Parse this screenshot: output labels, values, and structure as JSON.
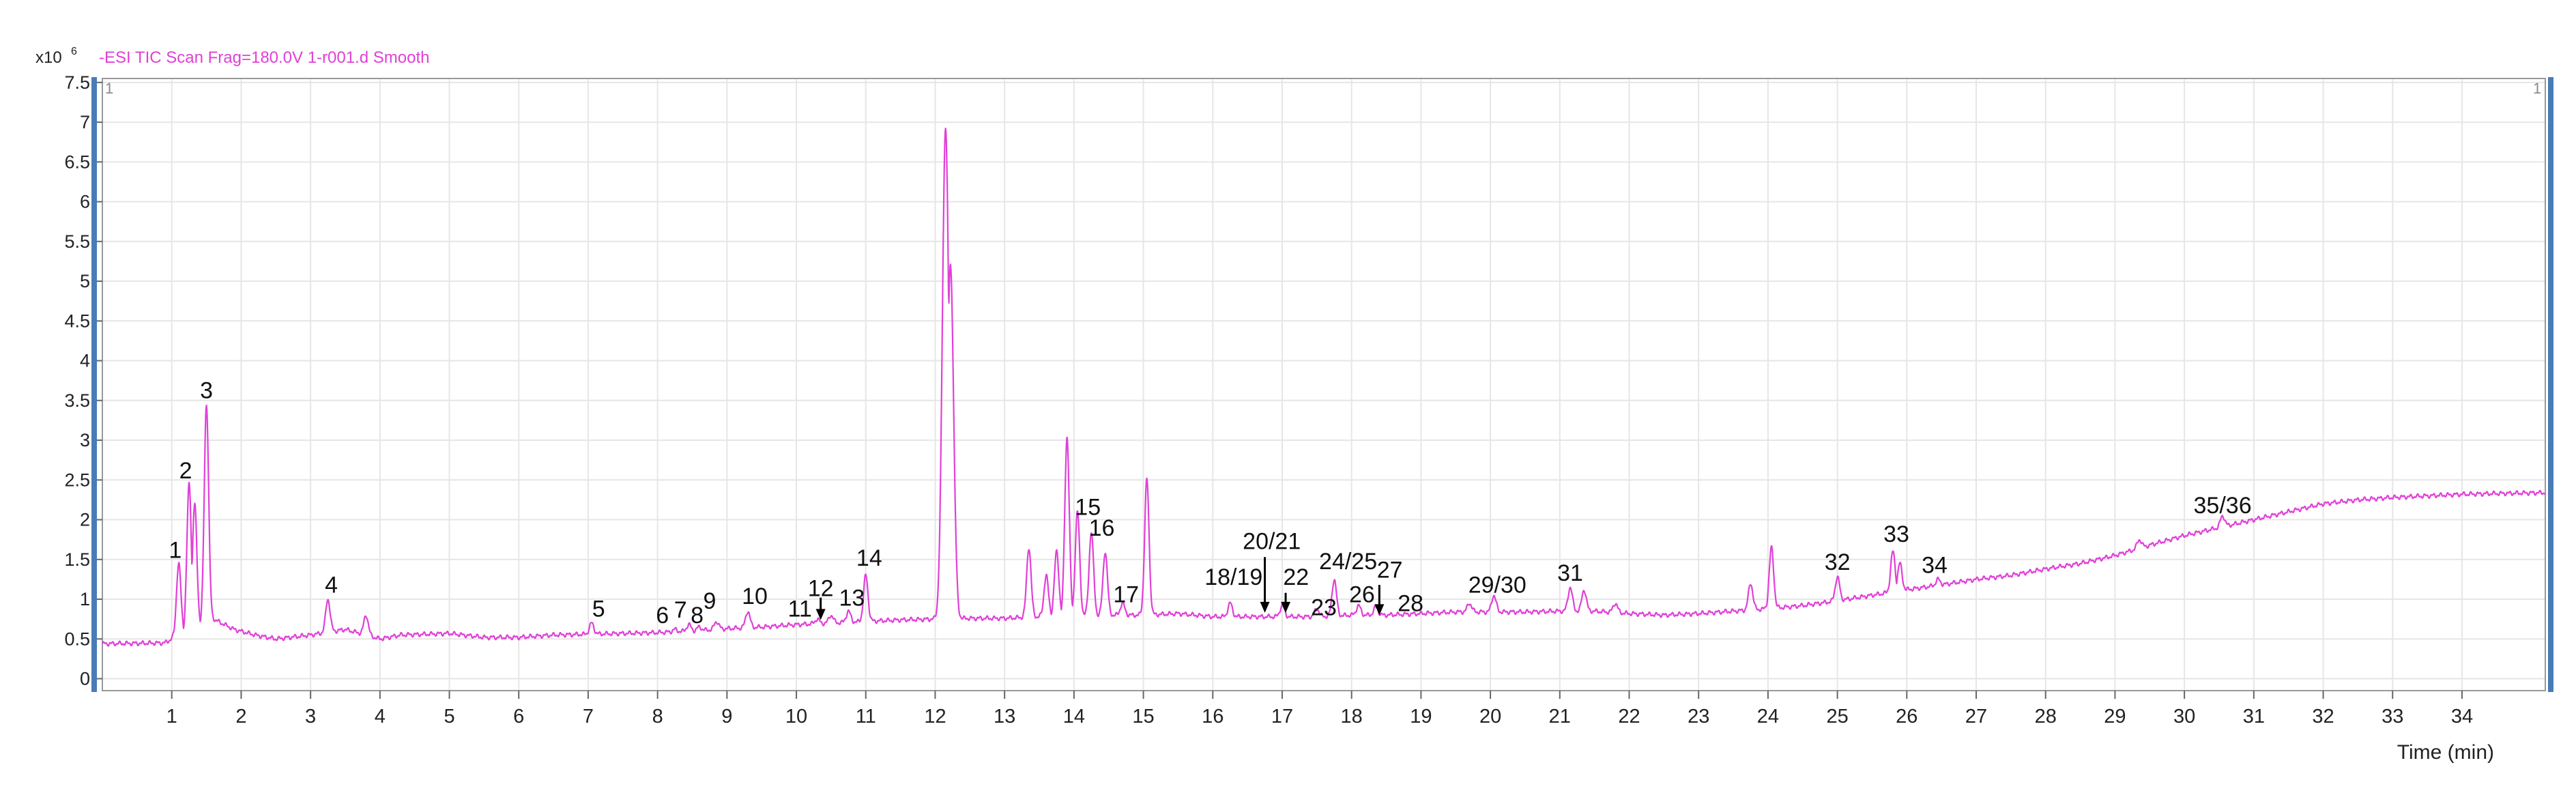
{
  "chart_data": {
    "type": "line",
    "title": "-ESI TIC Scan Frag=180.0V 1-r001.d  Smooth",
    "y_multiplier_label": "x10",
    "y_multiplier_exponent": "6",
    "xlabel": "Time (min)",
    "ylabel": "",
    "xlim": [
      0,
      35.2
    ],
    "ylim": [
      -0.15,
      7.55
    ],
    "x_ticks": [
      "1",
      "2",
      "3",
      "4",
      "5",
      "6",
      "7",
      "8",
      "9",
      "10",
      "11",
      "12",
      "13",
      "14",
      "15",
      "16",
      "17",
      "18",
      "19",
      "20",
      "21",
      "22",
      "23",
      "24",
      "25",
      "26",
      "27",
      "28",
      "29",
      "30",
      "31",
      "32",
      "33",
      "34"
    ],
    "y_ticks": [
      "0",
      "0.5",
      "1",
      "1.5",
      "2",
      "2.5",
      "3",
      "3.5",
      "4",
      "4.5",
      "5",
      "5.5",
      "6",
      "6.5",
      "7",
      "7.5"
    ],
    "cursor_labels": [
      "1",
      "1"
    ],
    "grid": true,
    "line_color": "#e040d8",
    "series": [
      {
        "baseline": [
          [
            0,
            0.44
          ],
          [
            0.9,
            0.45
          ],
          [
            1.0,
            0.5
          ],
          [
            1.6,
            0.75
          ],
          [
            1.9,
            0.62
          ],
          [
            2.2,
            0.55
          ],
          [
            2.5,
            0.5
          ],
          [
            3.0,
            0.55
          ],
          [
            3.5,
            0.62
          ],
          [
            3.8,
            0.55
          ],
          [
            4.0,
            0.5
          ],
          [
            4.3,
            0.55
          ],
          [
            5.0,
            0.57
          ],
          [
            5.5,
            0.52
          ],
          [
            6.0,
            0.52
          ],
          [
            6.5,
            0.55
          ],
          [
            7.0,
            0.56
          ],
          [
            7.5,
            0.57
          ],
          [
            8.0,
            0.58
          ],
          [
            8.5,
            0.6
          ],
          [
            9.0,
            0.63
          ],
          [
            9.5,
            0.65
          ],
          [
            10.0,
            0.68
          ],
          [
            10.5,
            0.7
          ],
          [
            11.0,
            0.72
          ],
          [
            11.5,
            0.74
          ],
          [
            12.0,
            0.75
          ],
          [
            12.5,
            0.76
          ],
          [
            13.0,
            0.76
          ],
          [
            13.5,
            0.78
          ],
          [
            14.0,
            0.8
          ],
          [
            14.5,
            0.8
          ],
          [
            15.0,
            0.8
          ],
          [
            15.5,
            0.82
          ],
          [
            16.0,
            0.78
          ],
          [
            16.5,
            0.78
          ],
          [
            17.0,
            0.78
          ],
          [
            17.5,
            0.78
          ],
          [
            18.0,
            0.8
          ],
          [
            18.5,
            0.8
          ],
          [
            19.0,
            0.82
          ],
          [
            19.5,
            0.84
          ],
          [
            20.0,
            0.84
          ],
          [
            20.5,
            0.84
          ],
          [
            21.0,
            0.85
          ],
          [
            21.5,
            0.85
          ],
          [
            22.0,
            0.82
          ],
          [
            22.5,
            0.8
          ],
          [
            23.0,
            0.82
          ],
          [
            23.5,
            0.85
          ],
          [
            24.0,
            0.88
          ],
          [
            24.5,
            0.92
          ],
          [
            25.0,
            0.98
          ],
          [
            25.5,
            1.05
          ],
          [
            26.0,
            1.12
          ],
          [
            26.5,
            1.18
          ],
          [
            27.0,
            1.25
          ],
          [
            27.5,
            1.3
          ],
          [
            28.0,
            1.38
          ],
          [
            28.5,
            1.45
          ],
          [
            29.0,
            1.55
          ],
          [
            29.5,
            1.68
          ],
          [
            30.0,
            1.8
          ],
          [
            30.5,
            1.9
          ],
          [
            31.0,
            2.0
          ],
          [
            31.5,
            2.1
          ],
          [
            32.0,
            2.2
          ],
          [
            32.5,
            2.25
          ],
          [
            33.0,
            2.28
          ],
          [
            33.5,
            2.3
          ],
          [
            34.0,
            2.32
          ],
          [
            34.5,
            2.33
          ],
          [
            35.2,
            2.34
          ]
        ],
        "peaks": [
          [
            1.1,
            1.45
          ],
          [
            1.25,
            2.45
          ],
          [
            1.33,
            2.2
          ],
          [
            1.5,
            3.45
          ],
          [
            3.25,
            1.0
          ],
          [
            3.8,
            0.8
          ],
          [
            7.05,
            0.7
          ],
          [
            8.25,
            0.62
          ],
          [
            8.45,
            0.68
          ],
          [
            8.6,
            0.65
          ],
          [
            8.85,
            0.72
          ],
          [
            9.3,
            0.85
          ],
          [
            10.3,
            0.75
          ],
          [
            10.5,
            0.8
          ],
          [
            10.75,
            0.85
          ],
          [
            11.0,
            1.3
          ],
          [
            12.15,
            6.95
          ],
          [
            12.22,
            5.2
          ],
          [
            13.35,
            1.65
          ],
          [
            13.6,
            1.3
          ],
          [
            13.75,
            1.6
          ],
          [
            13.9,
            3.05
          ],
          [
            14.05,
            2.1
          ],
          [
            14.25,
            1.85
          ],
          [
            14.45,
            1.6
          ],
          [
            14.7,
            0.95
          ],
          [
            15.05,
            2.5
          ],
          [
            16.25,
            0.95
          ],
          [
            17.0,
            0.92
          ],
          [
            17.5,
            0.88
          ],
          [
            17.75,
            1.25
          ],
          [
            18.1,
            0.92
          ],
          [
            18.35,
            0.9
          ],
          [
            19.7,
            0.95
          ],
          [
            20.05,
            1.05
          ],
          [
            21.15,
            1.15
          ],
          [
            21.35,
            1.12
          ],
          [
            21.8,
            0.95
          ],
          [
            23.75,
            1.2
          ],
          [
            24.05,
            1.65
          ],
          [
            25.0,
            1.28
          ],
          [
            25.8,
            1.6
          ],
          [
            25.9,
            1.45
          ],
          [
            26.45,
            1.25
          ],
          [
            29.35,
            1.75
          ],
          [
            30.55,
            2.05
          ]
        ]
      }
    ],
    "annotations": [
      {
        "label": "1",
        "x": 1.05,
        "y": 1.52
      },
      {
        "label": "2",
        "x": 1.2,
        "y": 2.52
      },
      {
        "label": "3",
        "x": 1.5,
        "y": 3.53
      },
      {
        "label": "4",
        "x": 3.3,
        "y": 1.08
      },
      {
        "label": "5",
        "x": 7.15,
        "y": 0.78
      },
      {
        "label": "6",
        "x": 8.07,
        "y": 0.7
      },
      {
        "label": "7",
        "x": 8.33,
        "y": 0.77
      },
      {
        "label": "8",
        "x": 8.57,
        "y": 0.7
      },
      {
        "label": "9",
        "x": 8.75,
        "y": 0.88
      },
      {
        "label": "10",
        "x": 9.4,
        "y": 0.94
      },
      {
        "label": "11",
        "x": 10.05,
        "y": 0.78
      },
      {
        "label": "12",
        "x": 10.35,
        "y": 1.04
      },
      {
        "label": "13",
        "x": 10.8,
        "y": 0.92
      },
      {
        "label": "14",
        "x": 11.05,
        "y": 1.42
      },
      {
        "label": "15",
        "x": 14.2,
        "y": 2.06
      },
      {
        "label": "16",
        "x": 14.4,
        "y": 1.8
      },
      {
        "label": "17",
        "x": 14.75,
        "y": 0.96
      },
      {
        "label": "18/19",
        "x": 16.3,
        "y": 1.18
      },
      {
        "label": "20/21",
        "x": 16.85,
        "y": 1.63
      },
      {
        "label": "22",
        "x": 17.2,
        "y": 1.18
      },
      {
        "label": "23",
        "x": 17.6,
        "y": 0.8
      },
      {
        "label": "24/25",
        "x": 17.95,
        "y": 1.38
      },
      {
        "label": "26",
        "x": 18.15,
        "y": 0.96
      },
      {
        "label": "27",
        "x": 18.55,
        "y": 1.27
      },
      {
        "label": "28",
        "x": 18.85,
        "y": 0.85
      },
      {
        "label": "29/30",
        "x": 20.1,
        "y": 1.08
      },
      {
        "label": "31",
        "x": 21.15,
        "y": 1.23
      },
      {
        "label": "32",
        "x": 25.0,
        "y": 1.37
      },
      {
        "label": "33",
        "x": 25.85,
        "y": 1.72
      },
      {
        "label": "34",
        "x": 26.4,
        "y": 1.33
      },
      {
        "label": "35/36",
        "x": 30.55,
        "y": 2.08
      }
    ],
    "arrows": [
      {
        "x": 10.35,
        "y_from": 1.02,
        "y_to": 0.74
      },
      {
        "x": 16.75,
        "y_from": 1.53,
        "y_to": 0.83
      },
      {
        "x": 17.05,
        "y_from": 1.08,
        "y_to": 0.83
      },
      {
        "x": 18.4,
        "y_from": 1.18,
        "y_to": 0.8
      }
    ]
  }
}
